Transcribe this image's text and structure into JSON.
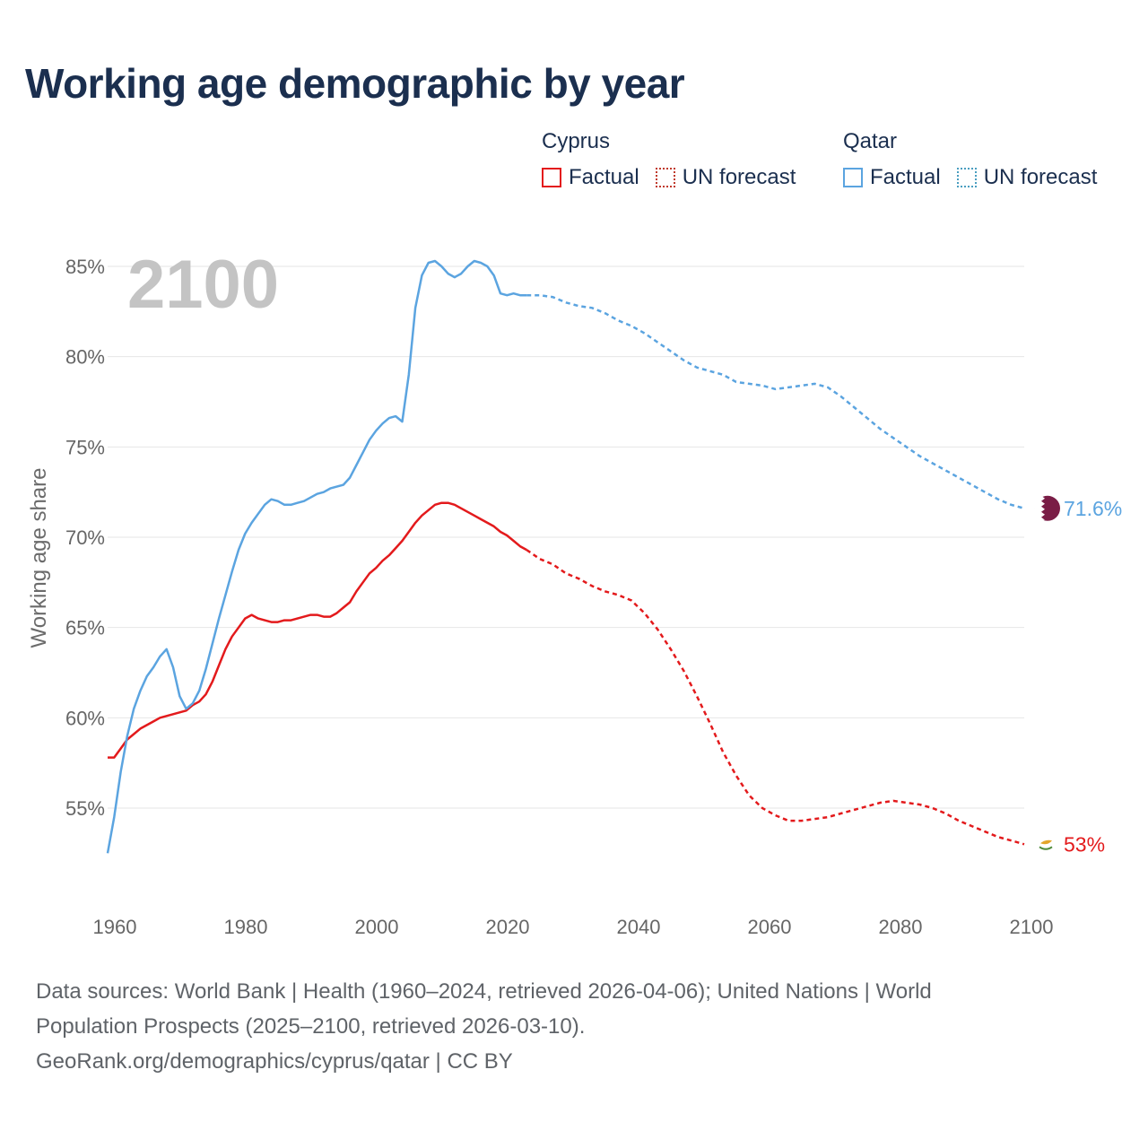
{
  "title": "Working age demographic by year",
  "year_watermark": "2100",
  "legend": {
    "groups": [
      {
        "name": "Cyprus",
        "factual_label": "Factual",
        "forecast_label": "UN forecast",
        "color": "#e31a1c",
        "forecast_border": "#c0392b"
      },
      {
        "name": "Qatar",
        "factual_label": "Factual",
        "forecast_label": "UN forecast",
        "color": "#5ba4e0",
        "forecast_border": "#4a9ec0"
      }
    ]
  },
  "footer": {
    "line1": "Data sources: World Bank | Health (1960–2024, retrieved 2026-04-06); United Nations | World",
    "line2": "Population Prospects (2025–2100, retrieved 2026-03-10).",
    "line3": "GeoRank.org/demographics/cyprus/qatar | CC BY"
  },
  "chart_data": {
    "type": "line",
    "title": "Working age demographic by year",
    "xlabel": "",
    "ylabel": "Working age share",
    "xlim": [
      1960,
      2100
    ],
    "ylim": [
      50,
      86
    ],
    "x_ticks": [
      1960,
      1980,
      2000,
      2020,
      2040,
      2060,
      2080,
      2100
    ],
    "x_tick_labels": [
      "1960",
      "1980",
      "2000",
      "2020",
      "2040",
      "2060",
      "2080",
      "2100"
    ],
    "y_ticks": [
      55,
      60,
      65,
      70,
      75,
      80,
      85
    ],
    "y_tick_labels": [
      "55%",
      "60%",
      "65%",
      "70%",
      "75%",
      "80%",
      "85%"
    ],
    "grid": true,
    "factual_end_year": 2024,
    "series": [
      {
        "name": "Cyprus",
        "color": "#e31a1c",
        "end_label": "53%",
        "flag": "cyprus",
        "points": [
          [
            1960,
            57.8
          ],
          [
            1961,
            57.8
          ],
          [
            1962,
            58.3
          ],
          [
            1963,
            58.8
          ],
          [
            1964,
            59.1
          ],
          [
            1965,
            59.4
          ],
          [
            1966,
            59.6
          ],
          [
            1967,
            59.8
          ],
          [
            1968,
            60.0
          ],
          [
            1969,
            60.1
          ],
          [
            1970,
            60.2
          ],
          [
            1971,
            60.3
          ],
          [
            1972,
            60.4
          ],
          [
            1973,
            60.7
          ],
          [
            1974,
            60.9
          ],
          [
            1975,
            61.3
          ],
          [
            1976,
            62.0
          ],
          [
            1977,
            62.9
          ],
          [
            1978,
            63.8
          ],
          [
            1979,
            64.5
          ],
          [
            1980,
            65.0
          ],
          [
            1981,
            65.5
          ],
          [
            1982,
            65.7
          ],
          [
            1983,
            65.5
          ],
          [
            1984,
            65.4
          ],
          [
            1985,
            65.3
          ],
          [
            1986,
            65.3
          ],
          [
            1987,
            65.4
          ],
          [
            1988,
            65.4
          ],
          [
            1989,
            65.5
          ],
          [
            1990,
            65.6
          ],
          [
            1991,
            65.7
          ],
          [
            1992,
            65.7
          ],
          [
            1993,
            65.6
          ],
          [
            1994,
            65.6
          ],
          [
            1995,
            65.8
          ],
          [
            1996,
            66.1
          ],
          [
            1997,
            66.4
          ],
          [
            1998,
            67.0
          ],
          [
            1999,
            67.5
          ],
          [
            2000,
            68.0
          ],
          [
            2001,
            68.3
          ],
          [
            2002,
            68.7
          ],
          [
            2003,
            69.0
          ],
          [
            2004,
            69.4
          ],
          [
            2005,
            69.8
          ],
          [
            2006,
            70.3
          ],
          [
            2007,
            70.8
          ],
          [
            2008,
            71.2
          ],
          [
            2009,
            71.5
          ],
          [
            2010,
            71.8
          ],
          [
            2011,
            71.9
          ],
          [
            2012,
            71.9
          ],
          [
            2013,
            71.8
          ],
          [
            2014,
            71.6
          ],
          [
            2015,
            71.4
          ],
          [
            2016,
            71.2
          ],
          [
            2017,
            71.0
          ],
          [
            2018,
            70.8
          ],
          [
            2019,
            70.6
          ],
          [
            2020,
            70.3
          ],
          [
            2021,
            70.1
          ],
          [
            2022,
            69.8
          ],
          [
            2023,
            69.5
          ],
          [
            2024,
            69.3
          ],
          [
            2026,
            68.8
          ],
          [
            2028,
            68.5
          ],
          [
            2030,
            68.0
          ],
          [
            2032,
            67.7
          ],
          [
            2034,
            67.3
          ],
          [
            2036,
            67.0
          ],
          [
            2038,
            66.8
          ],
          [
            2040,
            66.5
          ],
          [
            2042,
            65.8
          ],
          [
            2044,
            64.9
          ],
          [
            2046,
            63.8
          ],
          [
            2048,
            62.6
          ],
          [
            2050,
            61.2
          ],
          [
            2052,
            59.7
          ],
          [
            2054,
            58.1
          ],
          [
            2056,
            56.8
          ],
          [
            2058,
            55.7
          ],
          [
            2060,
            55.0
          ],
          [
            2062,
            54.6
          ],
          [
            2064,
            54.3
          ],
          [
            2066,
            54.3
          ],
          [
            2068,
            54.4
          ],
          [
            2070,
            54.5
          ],
          [
            2072,
            54.7
          ],
          [
            2074,
            54.9
          ],
          [
            2076,
            55.1
          ],
          [
            2078,
            55.3
          ],
          [
            2080,
            55.4
          ],
          [
            2082,
            55.3
          ],
          [
            2084,
            55.2
          ],
          [
            2086,
            55.0
          ],
          [
            2088,
            54.7
          ],
          [
            2090,
            54.3
          ],
          [
            2092,
            54.0
          ],
          [
            2094,
            53.7
          ],
          [
            2096,
            53.4
          ],
          [
            2098,
            53.2
          ],
          [
            2100,
            53.0
          ]
        ]
      },
      {
        "name": "Qatar",
        "color": "#5ba4e0",
        "end_label": "71.6%",
        "flag": "qatar",
        "points": [
          [
            1960,
            52.5
          ],
          [
            1961,
            54.5
          ],
          [
            1962,
            57.0
          ],
          [
            1963,
            59.0
          ],
          [
            1964,
            60.5
          ],
          [
            1965,
            61.5
          ],
          [
            1966,
            62.3
          ],
          [
            1967,
            62.8
          ],
          [
            1968,
            63.4
          ],
          [
            1969,
            63.8
          ],
          [
            1970,
            62.8
          ],
          [
            1971,
            61.2
          ],
          [
            1972,
            60.5
          ],
          [
            1973,
            60.8
          ],
          [
            1974,
            61.5
          ],
          [
            1975,
            62.7
          ],
          [
            1976,
            64.1
          ],
          [
            1977,
            65.5
          ],
          [
            1978,
            66.8
          ],
          [
            1979,
            68.1
          ],
          [
            1980,
            69.3
          ],
          [
            1981,
            70.2
          ],
          [
            1982,
            70.8
          ],
          [
            1983,
            71.3
          ],
          [
            1984,
            71.8
          ],
          [
            1985,
            72.1
          ],
          [
            1986,
            72.0
          ],
          [
            1987,
            71.8
          ],
          [
            1988,
            71.8
          ],
          [
            1989,
            71.9
          ],
          [
            1990,
            72.0
          ],
          [
            1991,
            72.2
          ],
          [
            1992,
            72.4
          ],
          [
            1993,
            72.5
          ],
          [
            1994,
            72.7
          ],
          [
            1995,
            72.8
          ],
          [
            1996,
            72.9
          ],
          [
            1997,
            73.3
          ],
          [
            1998,
            74.0
          ],
          [
            1999,
            74.7
          ],
          [
            2000,
            75.4
          ],
          [
            2001,
            75.9
          ],
          [
            2002,
            76.3
          ],
          [
            2003,
            76.6
          ],
          [
            2004,
            76.7
          ],
          [
            2005,
            76.4
          ],
          [
            2006,
            79.0
          ],
          [
            2007,
            82.7
          ],
          [
            2008,
            84.5
          ],
          [
            2009,
            85.2
          ],
          [
            2010,
            85.3
          ],
          [
            2011,
            85.0
          ],
          [
            2012,
            84.6
          ],
          [
            2013,
            84.4
          ],
          [
            2014,
            84.6
          ],
          [
            2015,
            85.0
          ],
          [
            2016,
            85.3
          ],
          [
            2017,
            85.2
          ],
          [
            2018,
            85.0
          ],
          [
            2019,
            84.5
          ],
          [
            2020,
            83.5
          ],
          [
            2021,
            83.4
          ],
          [
            2022,
            83.5
          ],
          [
            2023,
            83.4
          ],
          [
            2024,
            83.4
          ],
          [
            2026,
            83.4
          ],
          [
            2028,
            83.3
          ],
          [
            2030,
            83.0
          ],
          [
            2032,
            82.8
          ],
          [
            2034,
            82.7
          ],
          [
            2036,
            82.4
          ],
          [
            2038,
            82.0
          ],
          [
            2040,
            81.7
          ],
          [
            2042,
            81.3
          ],
          [
            2044,
            80.8
          ],
          [
            2046,
            80.3
          ],
          [
            2048,
            79.8
          ],
          [
            2050,
            79.4
          ],
          [
            2052,
            79.2
          ],
          [
            2054,
            79.0
          ],
          [
            2056,
            78.6
          ],
          [
            2058,
            78.5
          ],
          [
            2060,
            78.4
          ],
          [
            2062,
            78.2
          ],
          [
            2064,
            78.3
          ],
          [
            2066,
            78.4
          ],
          [
            2068,
            78.5
          ],
          [
            2070,
            78.3
          ],
          [
            2072,
            77.8
          ],
          [
            2074,
            77.2
          ],
          [
            2076,
            76.6
          ],
          [
            2078,
            76.0
          ],
          [
            2080,
            75.5
          ],
          [
            2082,
            75.0
          ],
          [
            2084,
            74.5
          ],
          [
            2086,
            74.1
          ],
          [
            2088,
            73.7
          ],
          [
            2090,
            73.3
          ],
          [
            2092,
            72.9
          ],
          [
            2094,
            72.5
          ],
          [
            2096,
            72.1
          ],
          [
            2098,
            71.8
          ],
          [
            2100,
            71.6
          ]
        ]
      }
    ]
  }
}
